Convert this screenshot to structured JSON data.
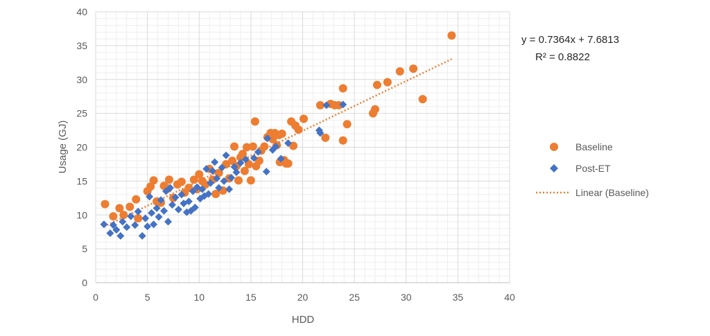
{
  "chart_data": {
    "type": "scatter",
    "xlabel": "HDD",
    "ylabel": "Usage (GJ)",
    "xlim": [
      0,
      40
    ],
    "ylim": [
      0,
      40
    ],
    "x_ticks": [
      "0",
      "5",
      "10",
      "15",
      "20",
      "25",
      "30",
      "35",
      "40"
    ],
    "y_ticks": [
      "0",
      "5",
      "10",
      "15",
      "20",
      "25",
      "30",
      "35",
      "40"
    ],
    "grid": true,
    "minor_grid": true,
    "legend_position": "right",
    "colors": {
      "baseline": "#ED7D31",
      "post_et": "#4472C4"
    },
    "series": [
      {
        "name": "Baseline",
        "marker": "circle",
        "points": [
          [
            0.9,
            11.6
          ],
          [
            1.7,
            9.8
          ],
          [
            2.3,
            11.0
          ],
          [
            2.7,
            10.0
          ],
          [
            3.3,
            11.2
          ],
          [
            3.9,
            12.3
          ],
          [
            4.1,
            9.5
          ],
          [
            5.0,
            13.5
          ],
          [
            5.3,
            14.2
          ],
          [
            5.6,
            15.1
          ],
          [
            5.9,
            12.0
          ],
          [
            6.3,
            11.8
          ],
          [
            6.6,
            14.3
          ],
          [
            7.0,
            13.9
          ],
          [
            7.1,
            15.2
          ],
          [
            7.5,
            12.5
          ],
          [
            7.9,
            14.5
          ],
          [
            8.3,
            14.9
          ],
          [
            8.6,
            13.3
          ],
          [
            9.0,
            14.0
          ],
          [
            9.5,
            15.2
          ],
          [
            9.8,
            13.8
          ],
          [
            10.0,
            16.0
          ],
          [
            10.3,
            15.0
          ],
          [
            10.6,
            14.5
          ],
          [
            11.0,
            16.8
          ],
          [
            11.3,
            15.2
          ],
          [
            11.6,
            13.1
          ],
          [
            11.9,
            16.2
          ],
          [
            12.3,
            13.6
          ],
          [
            12.6,
            17.5
          ],
          [
            12.9,
            15.4
          ],
          [
            13.2,
            18.0
          ],
          [
            13.4,
            20.1
          ],
          [
            13.6,
            17.2
          ],
          [
            13.8,
            15.1
          ],
          [
            14.0,
            18.5
          ],
          [
            14.2,
            19.0
          ],
          [
            14.4,
            16.5
          ],
          [
            14.6,
            20.0
          ],
          [
            14.8,
            17.5
          ],
          [
            15.0,
            15.1
          ],
          [
            15.2,
            20.1
          ],
          [
            15.4,
            23.8
          ],
          [
            15.5,
            17.2
          ],
          [
            15.8,
            18.0
          ],
          [
            16.0,
            19.5
          ],
          [
            16.3,
            20.1
          ],
          [
            16.6,
            21.5
          ],
          [
            16.9,
            22.1
          ],
          [
            17.1,
            21.2
          ],
          [
            17.3,
            22.1
          ],
          [
            17.5,
            20.3
          ],
          [
            17.7,
            21.8
          ],
          [
            17.8,
            17.8
          ],
          [
            18.0,
            22.0
          ],
          [
            18.2,
            18.1
          ],
          [
            18.4,
            17.6
          ],
          [
            18.6,
            17.6
          ],
          [
            18.9,
            23.8
          ],
          [
            19.1,
            20.2
          ],
          [
            19.3,
            23.2
          ],
          [
            19.6,
            22.6
          ],
          [
            20.1,
            24.2
          ],
          [
            21.7,
            26.2
          ],
          [
            22.2,
            21.4
          ],
          [
            22.7,
            26.4
          ],
          [
            23.1,
            26.2
          ],
          [
            23.5,
            26.2
          ],
          [
            23.9,
            21.0
          ],
          [
            23.9,
            28.7
          ],
          [
            24.3,
            23.4
          ],
          [
            26.8,
            25.0
          ],
          [
            27.0,
            25.6
          ],
          [
            27.2,
            29.2
          ],
          [
            28.2,
            29.6
          ],
          [
            29.4,
            31.2
          ],
          [
            30.7,
            31.6
          ],
          [
            31.6,
            27.1
          ],
          [
            34.4,
            36.5
          ]
        ]
      },
      {
        "name": "Post-ET",
        "marker": "diamond",
        "points": [
          [
            0.8,
            8.6
          ],
          [
            1.4,
            7.3
          ],
          [
            1.7,
            8.5
          ],
          [
            2.0,
            7.8
          ],
          [
            2.4,
            6.9
          ],
          [
            2.6,
            9.0
          ],
          [
            3.0,
            8.2
          ],
          [
            3.4,
            9.8
          ],
          [
            3.8,
            8.5
          ],
          [
            4.1,
            10.5
          ],
          [
            4.5,
            6.9
          ],
          [
            4.8,
            9.5
          ],
          [
            5.0,
            8.3
          ],
          [
            5.2,
            12.7
          ],
          [
            5.4,
            10.3
          ],
          [
            5.6,
            8.6
          ],
          [
            5.9,
            11.0
          ],
          [
            6.1,
            9.7
          ],
          [
            6.3,
            12.2
          ],
          [
            6.6,
            10.6
          ],
          [
            6.8,
            13.5
          ],
          [
            7.0,
            9.0
          ],
          [
            7.2,
            14.0
          ],
          [
            7.4,
            11.5
          ],
          [
            7.7,
            12.6
          ],
          [
            8.0,
            10.8
          ],
          [
            8.3,
            13.0
          ],
          [
            8.5,
            11.7
          ],
          [
            8.8,
            10.4
          ],
          [
            9.0,
            12.0
          ],
          [
            9.2,
            10.6
          ],
          [
            9.4,
            13.5
          ],
          [
            9.6,
            11.1
          ],
          [
            9.8,
            14.1
          ],
          [
            10.1,
            12.4
          ],
          [
            10.3,
            13.8
          ],
          [
            10.5,
            12.8
          ],
          [
            10.7,
            16.8
          ],
          [
            10.9,
            13.1
          ],
          [
            11.1,
            14.7
          ],
          [
            11.3,
            16.5
          ],
          [
            11.5,
            17.8
          ],
          [
            11.7,
            15.4
          ],
          [
            11.9,
            14.0
          ],
          [
            12.2,
            17.0
          ],
          [
            12.4,
            15.0
          ],
          [
            12.6,
            18.8
          ],
          [
            12.9,
            13.8
          ],
          [
            13.1,
            15.5
          ],
          [
            13.4,
            17.1
          ],
          [
            13.6,
            16.3
          ],
          [
            14.0,
            17.7
          ],
          [
            14.5,
            18.2
          ],
          [
            15.3,
            18.4
          ],
          [
            15.7,
            19.3
          ],
          [
            16.5,
            16.4
          ],
          [
            16.6,
            21.3
          ],
          [
            17.1,
            19.6
          ],
          [
            17.4,
            20.1
          ],
          [
            17.9,
            18.3
          ],
          [
            18.6,
            20.6
          ],
          [
            21.6,
            22.5
          ],
          [
            21.7,
            22.1
          ],
          [
            22.3,
            26.2
          ],
          [
            23.9,
            26.3
          ]
        ]
      },
      {
        "name": "Linear (Baseline)",
        "type": "trendline",
        "slope": 0.7364,
        "intercept": 7.6813,
        "x_range": [
          0.8,
          34.4
        ]
      }
    ],
    "annotations": {
      "equation": "y = 0.7364x + 7.6813",
      "r_squared": "R² = 0.8822"
    }
  }
}
